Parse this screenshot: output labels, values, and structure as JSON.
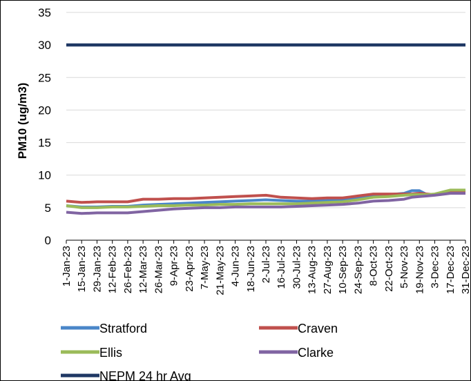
{
  "chart_data": {
    "type": "line",
    "title": "",
    "xlabel": "",
    "ylabel": "PM10 (ug/m3)",
    "ylim": [
      0,
      35
    ],
    "yticks": [
      0,
      5,
      10,
      15,
      20,
      25,
      30,
      35
    ],
    "grid": "horizontal",
    "legend": "bottom",
    "x_tick_labels": [
      "1-Jan-23",
      "15-Jan-23",
      "29-Jan-23",
      "12-Feb-23",
      "26-Feb-23",
      "12-Mar-23",
      "26-Mar-23",
      "9-Apr-23",
      "23-Apr-23",
      "7-May-23",
      "21-May-23",
      "4-Jun-23",
      "18-Jun-23",
      "2-Jul-23",
      "16-Jul-23",
      "30-Jul-23",
      "13-Aug-23",
      "27-Aug-23",
      "10-Sep-23",
      "24-Sep-23",
      "8-Oct-23",
      "22-Oct-23",
      "5-Nov-23",
      "19-Nov-23",
      "3-Dec-23",
      "17-Dec-23",
      "31-Dec-23"
    ],
    "x": [
      "1-Jan-23",
      "15-Jan-23",
      "29-Jan-23",
      "12-Feb-23",
      "26-Feb-23",
      "12-Mar-23",
      "26-Mar-23",
      "9-Apr-23",
      "23-Apr-23",
      "7-May-23",
      "21-May-23",
      "4-Jun-23",
      "18-Jun-23",
      "2-Jul-23",
      "16-Jul-23",
      "30-Jul-23",
      "13-Aug-23",
      "27-Aug-23",
      "10-Sep-23",
      "24-Sep-23",
      "8-Oct-23",
      "22-Oct-23",
      "5-Nov-23",
      "12-Nov-23",
      "19-Nov-23",
      "26-Nov-23",
      "3-Dec-23",
      "17-Dec-23",
      "31-Dec-23"
    ],
    "series": [
      {
        "name": "Stratford",
        "color": "#4a86c8",
        "values": [
          5.3,
          5.1,
          5.1,
          5.2,
          5.2,
          5.4,
          5.5,
          5.6,
          5.7,
          5.8,
          5.9,
          6.0,
          6.1,
          6.2,
          6.1,
          6.0,
          6.0,
          6.1,
          6.2,
          6.5,
          6.9,
          7.0,
          7.2,
          7.6,
          7.6,
          7.0,
          7.0,
          7.6,
          7.5
        ]
      },
      {
        "name": "Craven",
        "color": "#c0504d",
        "values": [
          6.0,
          5.8,
          5.9,
          5.9,
          5.9,
          6.3,
          6.3,
          6.4,
          6.4,
          6.5,
          6.6,
          6.7,
          6.8,
          6.9,
          6.6,
          6.5,
          6.4,
          6.5,
          6.5,
          6.8,
          7.1,
          7.1,
          7.1,
          7.1,
          7.2,
          7.1,
          7.0,
          7.5,
          7.4
        ]
      },
      {
        "name": "Ellis",
        "color": "#9bbb59",
        "values": [
          5.3,
          5.0,
          5.0,
          5.1,
          5.1,
          5.2,
          5.3,
          5.3,
          5.4,
          5.4,
          5.5,
          5.5,
          5.6,
          5.6,
          5.6,
          5.6,
          5.7,
          5.8,
          5.9,
          6.2,
          6.6,
          6.7,
          6.9,
          7.0,
          7.0,
          7.0,
          7.1,
          7.7,
          7.7
        ]
      },
      {
        "name": "Clarke",
        "color": "#8064a2",
        "values": [
          4.3,
          4.1,
          4.2,
          4.2,
          4.2,
          4.4,
          4.6,
          4.8,
          4.9,
          5.0,
          5.0,
          5.1,
          5.1,
          5.1,
          5.1,
          5.2,
          5.3,
          5.4,
          5.5,
          5.7,
          6.0,
          6.1,
          6.3,
          6.6,
          6.7,
          6.8,
          6.9,
          7.2,
          7.2
        ]
      },
      {
        "name": "NEPM 24 hr Avg",
        "color": "#1f3864",
        "values": [
          30,
          30,
          30,
          30,
          30,
          30,
          30,
          30,
          30,
          30,
          30,
          30,
          30,
          30,
          30,
          30,
          30,
          30,
          30,
          30,
          30,
          30,
          30,
          30,
          30,
          30,
          30,
          30,
          30
        ]
      }
    ]
  }
}
